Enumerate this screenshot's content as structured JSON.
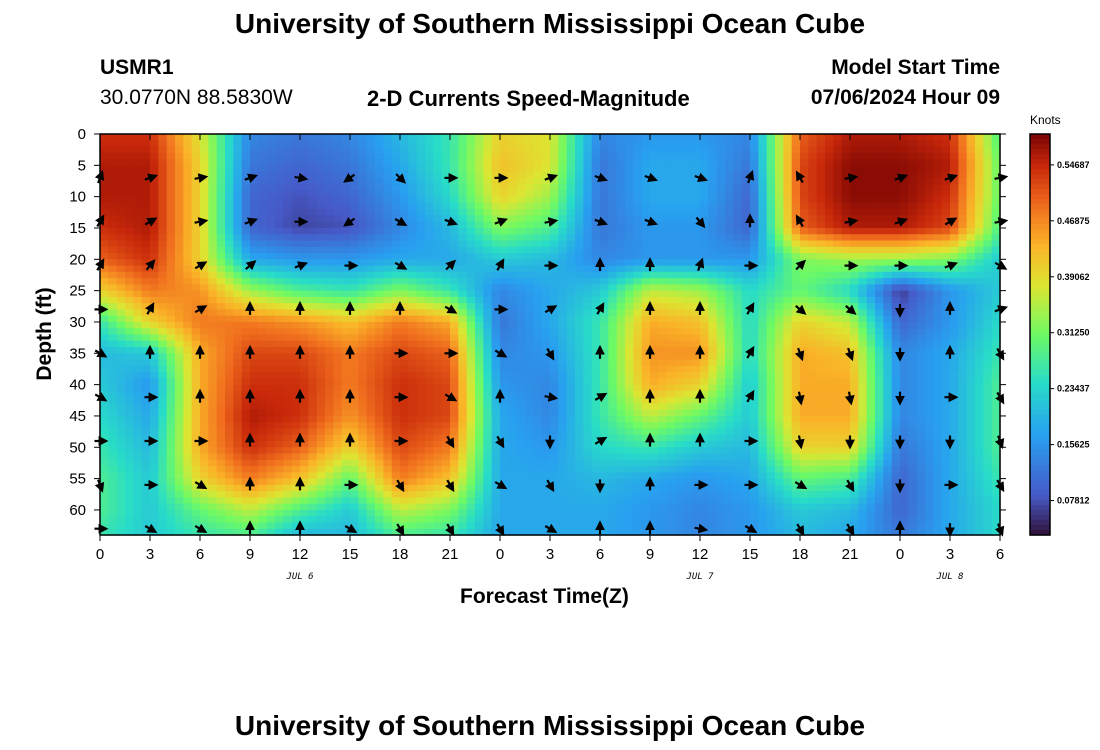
{
  "page": {
    "title_top": "University of Southern Mississippi Ocean Cube",
    "title_bottom": "University of Southern Mississippi Ocean Cube",
    "station_id": "USMR1",
    "coords": "30.0770N  88.5830W",
    "subtitle": "2-D Currents Speed-Magnitude",
    "model_label": "Model Start Time",
    "model_time": "07/06/2024 Hour 09"
  },
  "chart_data": {
    "type": "heatmap",
    "title": "2-D Currents Speed-Magnitude",
    "xlabel": "Forecast Time(Z)",
    "ylabel": "Depth (ft)",
    "x_hours_range": [
      0,
      54
    ],
    "x_tick_hours": [
      0,
      3,
      6,
      9,
      12,
      15,
      18,
      21,
      24,
      27,
      30,
      33,
      36,
      39,
      42,
      45,
      48,
      51,
      54
    ],
    "x_tick_labels": [
      "0",
      "3",
      "6",
      "9",
      "12",
      "15",
      "18",
      "21",
      "0",
      "3",
      "6",
      "9",
      "12",
      "15",
      "18",
      "21",
      "0",
      "3",
      "6"
    ],
    "date_labels": [
      {
        "text": "JUL 6",
        "hour": 12
      },
      {
        "text": "JUL 7",
        "hour": 36
      },
      {
        "text": "JUL 8",
        "hour": 51
      }
    ],
    "ylim": [
      0,
      64
    ],
    "y_ticks": [
      0,
      5,
      10,
      15,
      20,
      25,
      30,
      35,
      40,
      45,
      50,
      55,
      60
    ],
    "colorbar": {
      "label": "Knots",
      "range": [
        0.03,
        0.59
      ],
      "ticks": [
        0.54687,
        0.46875,
        0.39062,
        0.3125,
        0.23437,
        0.15625,
        0.07812
      ],
      "tick_labels": [
        "0.54687",
        "0.46875",
        "0.39062",
        "0.31250",
        "0.23437",
        "0.15625",
        "0.07812"
      ]
    },
    "speed_grid": {
      "hours": [
        0,
        3,
        6,
        9,
        12,
        15,
        18,
        21,
        24,
        27,
        30,
        33,
        36,
        39,
        42,
        45,
        48,
        51,
        54
      ],
      "depths": [
        0,
        5,
        10,
        15,
        20,
        25,
        30,
        35,
        40,
        45,
        50,
        55,
        60,
        64
      ],
      "values": [
        [
          0.54,
          0.54,
          0.38,
          0.14,
          0.12,
          0.14,
          0.2,
          0.26,
          0.4,
          0.38,
          0.14,
          0.16,
          0.16,
          0.14,
          0.5,
          0.56,
          0.56,
          0.54,
          0.28
        ],
        [
          0.56,
          0.56,
          0.4,
          0.12,
          0.1,
          0.12,
          0.18,
          0.26,
          0.42,
          0.38,
          0.12,
          0.18,
          0.18,
          0.12,
          0.52,
          0.58,
          0.58,
          0.56,
          0.3
        ],
        [
          0.56,
          0.56,
          0.4,
          0.1,
          0.08,
          0.1,
          0.16,
          0.24,
          0.4,
          0.34,
          0.12,
          0.18,
          0.18,
          0.1,
          0.52,
          0.58,
          0.58,
          0.54,
          0.3
        ],
        [
          0.54,
          0.56,
          0.4,
          0.1,
          0.07,
          0.08,
          0.14,
          0.2,
          0.32,
          0.28,
          0.12,
          0.16,
          0.16,
          0.1,
          0.5,
          0.56,
          0.56,
          0.52,
          0.28
        ],
        [
          0.5,
          0.54,
          0.4,
          0.18,
          0.16,
          0.16,
          0.18,
          0.18,
          0.22,
          0.2,
          0.14,
          0.16,
          0.16,
          0.16,
          0.32,
          0.34,
          0.34,
          0.32,
          0.22
        ],
        [
          0.4,
          0.48,
          0.46,
          0.34,
          0.28,
          0.26,
          0.32,
          0.26,
          0.14,
          0.18,
          0.22,
          0.36,
          0.34,
          0.24,
          0.3,
          0.24,
          0.06,
          0.16,
          0.22
        ],
        [
          0.26,
          0.4,
          0.48,
          0.48,
          0.46,
          0.42,
          0.48,
          0.44,
          0.12,
          0.18,
          0.26,
          0.44,
          0.42,
          0.24,
          0.4,
          0.36,
          0.1,
          0.16,
          0.24
        ],
        [
          0.2,
          0.22,
          0.44,
          0.52,
          0.52,
          0.48,
          0.52,
          0.5,
          0.14,
          0.16,
          0.26,
          0.46,
          0.46,
          0.24,
          0.44,
          0.42,
          0.14,
          0.18,
          0.26
        ],
        [
          0.22,
          0.16,
          0.44,
          0.54,
          0.54,
          0.48,
          0.54,
          0.52,
          0.16,
          0.14,
          0.26,
          0.44,
          0.4,
          0.22,
          0.44,
          0.44,
          0.14,
          0.18,
          0.28
        ],
        [
          0.24,
          0.18,
          0.44,
          0.56,
          0.54,
          0.46,
          0.54,
          0.52,
          0.18,
          0.14,
          0.26,
          0.36,
          0.3,
          0.22,
          0.44,
          0.44,
          0.14,
          0.18,
          0.28
        ],
        [
          0.26,
          0.2,
          0.44,
          0.54,
          0.5,
          0.4,
          0.52,
          0.48,
          0.18,
          0.16,
          0.24,
          0.26,
          0.22,
          0.2,
          0.4,
          0.4,
          0.12,
          0.18,
          0.28
        ],
        [
          0.28,
          0.22,
          0.4,
          0.48,
          0.42,
          0.3,
          0.48,
          0.42,
          0.18,
          0.18,
          0.2,
          0.18,
          0.16,
          0.18,
          0.3,
          0.28,
          0.1,
          0.18,
          0.26
        ],
        [
          0.28,
          0.22,
          0.3,
          0.36,
          0.28,
          0.22,
          0.36,
          0.32,
          0.18,
          0.18,
          0.18,
          0.16,
          0.14,
          0.16,
          0.22,
          0.2,
          0.1,
          0.18,
          0.24
        ],
        [
          0.26,
          0.22,
          0.26,
          0.28,
          0.2,
          0.2,
          0.28,
          0.26,
          0.18,
          0.18,
          0.18,
          0.16,
          0.14,
          0.16,
          0.2,
          0.18,
          0.12,
          0.18,
          0.24
        ]
      ]
    },
    "vectors": {
      "depths": [
        7,
        14,
        21,
        28,
        35,
        42,
        49,
        56,
        63
      ],
      "hours": [
        0,
        3,
        6,
        9,
        12,
        15,
        18,
        21,
        24,
        27,
        30,
        33,
        36,
        39,
        42,
        45,
        48,
        51,
        54
      ],
      "direction_deg": [
        [
          20,
          70,
          80,
          70,
          100,
          235,
          135,
          90,
          90,
          70,
          110,
          110,
          110,
          20,
          330,
          80,
          70,
          70,
          80
        ],
        [
          30,
          60,
          80,
          70,
          90,
          235,
          120,
          110,
          70,
          80,
          110,
          110,
          140,
          0,
          330,
          80,
          70,
          60,
          80
        ],
        [
          30,
          40,
          60,
          50,
          70,
          90,
          120,
          45,
          30,
          90,
          0,
          0,
          20,
          90,
          45,
          90,
          90,
          70,
          120
        ],
        [
          90,
          30,
          60,
          0,
          0,
          0,
          0,
          120,
          90,
          60,
          30,
          0,
          0,
          30,
          130,
          130,
          180,
          0,
          70
        ],
        [
          120,
          0,
          0,
          0,
          0,
          0,
          90,
          90,
          120,
          150,
          0,
          0,
          0,
          30,
          160,
          160,
          180,
          0,
          150
        ],
        [
          120,
          90,
          0,
          0,
          0,
          0,
          90,
          120,
          0,
          100,
          60,
          0,
          0,
          30,
          170,
          170,
          180,
          90,
          150
        ],
        [
          90,
          90,
          90,
          0,
          0,
          0,
          90,
          150,
          150,
          180,
          60,
          0,
          0,
          90,
          170,
          180,
          180,
          180,
          160
        ],
        [
          160,
          90,
          120,
          0,
          0,
          90,
          150,
          150,
          120,
          150,
          180,
          0,
          90,
          90,
          120,
          150,
          180,
          90,
          150
        ],
        [
          90,
          120,
          120,
          0,
          0,
          120,
          150,
          150,
          150,
          120,
          0,
          0,
          100,
          120,
          150,
          150,
          0,
          180,
          160
        ]
      ]
    }
  }
}
